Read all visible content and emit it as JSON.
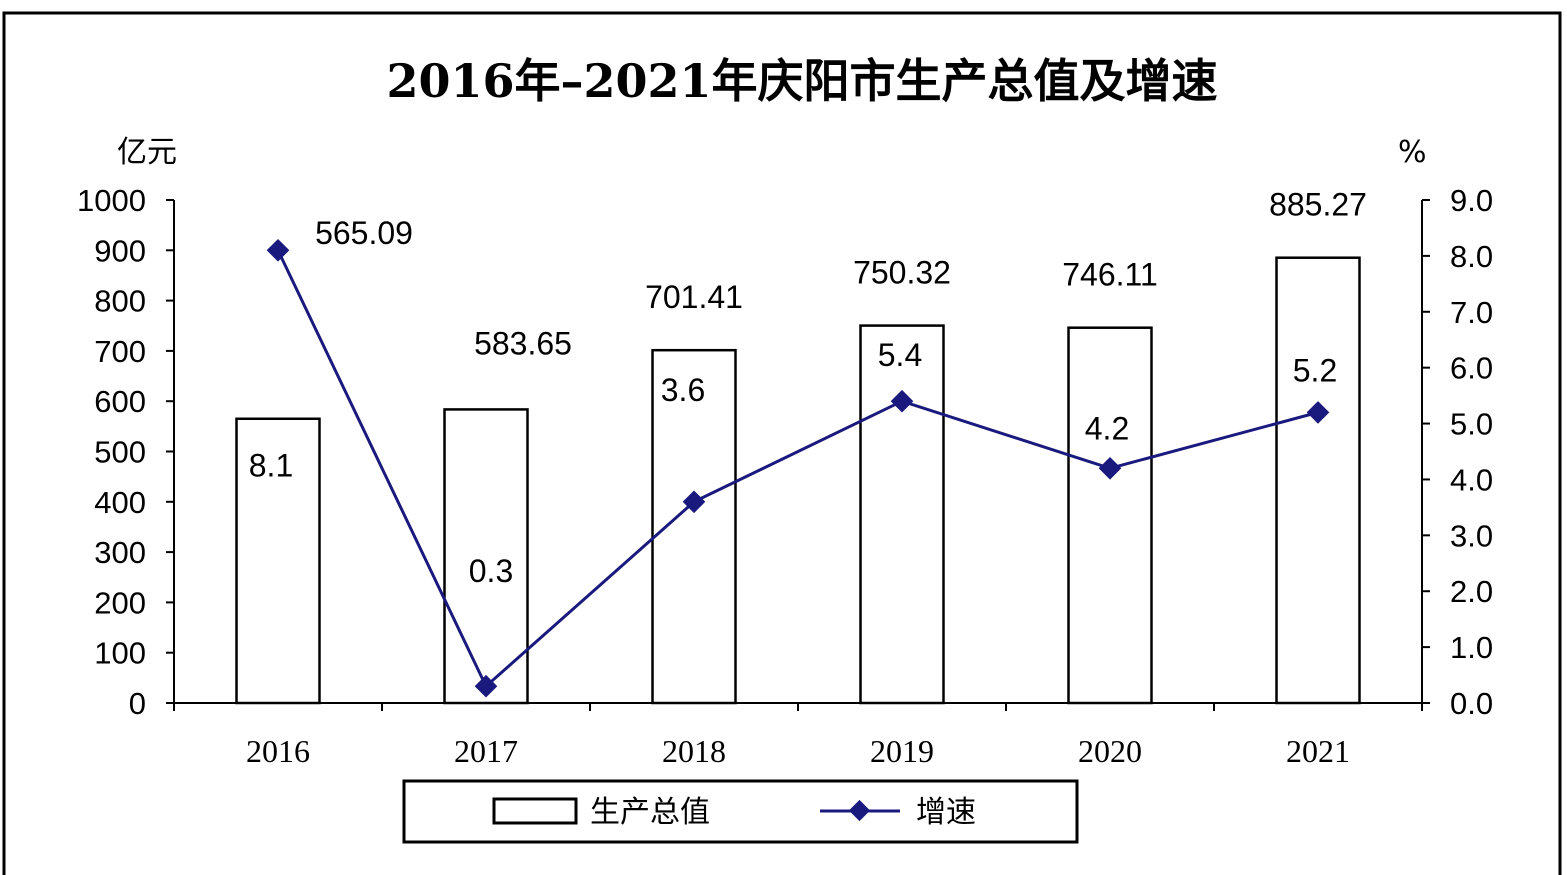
{
  "chart_data": {
    "type": "bar",
    "title": "2016年–2021年庆阳市生产总值及增速",
    "categories": [
      "2016",
      "2017",
      "2018",
      "2019",
      "2020",
      "2021"
    ],
    "y_left_unit": "亿元",
    "y_right_unit": "%",
    "y_left_range": [
      0,
      1000
    ],
    "y_left_ticks": [
      "0",
      "100",
      "200",
      "300",
      "400",
      "500",
      "600",
      "700",
      "800",
      "900",
      "1000"
    ],
    "y_right_range": [
      0,
      9
    ],
    "y_right_ticks": [
      "0.0",
      "1.0",
      "2.0",
      "3.0",
      "4.0",
      "5.0",
      "6.0",
      "7.0",
      "8.0",
      "9.0"
    ],
    "grid": false,
    "legend_position": "bottom",
    "series": [
      {
        "name": "生产总值",
        "type": "bar",
        "axis": "left",
        "values": [
          565.09,
          583.65,
          701.41,
          750.32,
          746.11,
          885.27
        ],
        "labels": [
          "565.09",
          "583.65",
          "701.41",
          "750.32",
          "746.11",
          "885.27"
        ],
        "color": "#ffffff"
      },
      {
        "name": "增速",
        "type": "line",
        "axis": "right",
        "values": [
          8.1,
          0.3,
          3.6,
          5.4,
          4.2,
          5.2
        ],
        "labels": [
          "8.1",
          "0.3",
          "3.6",
          "5.4",
          "4.2",
          "5.2"
        ],
        "color": "#1a1a7e"
      }
    ]
  }
}
